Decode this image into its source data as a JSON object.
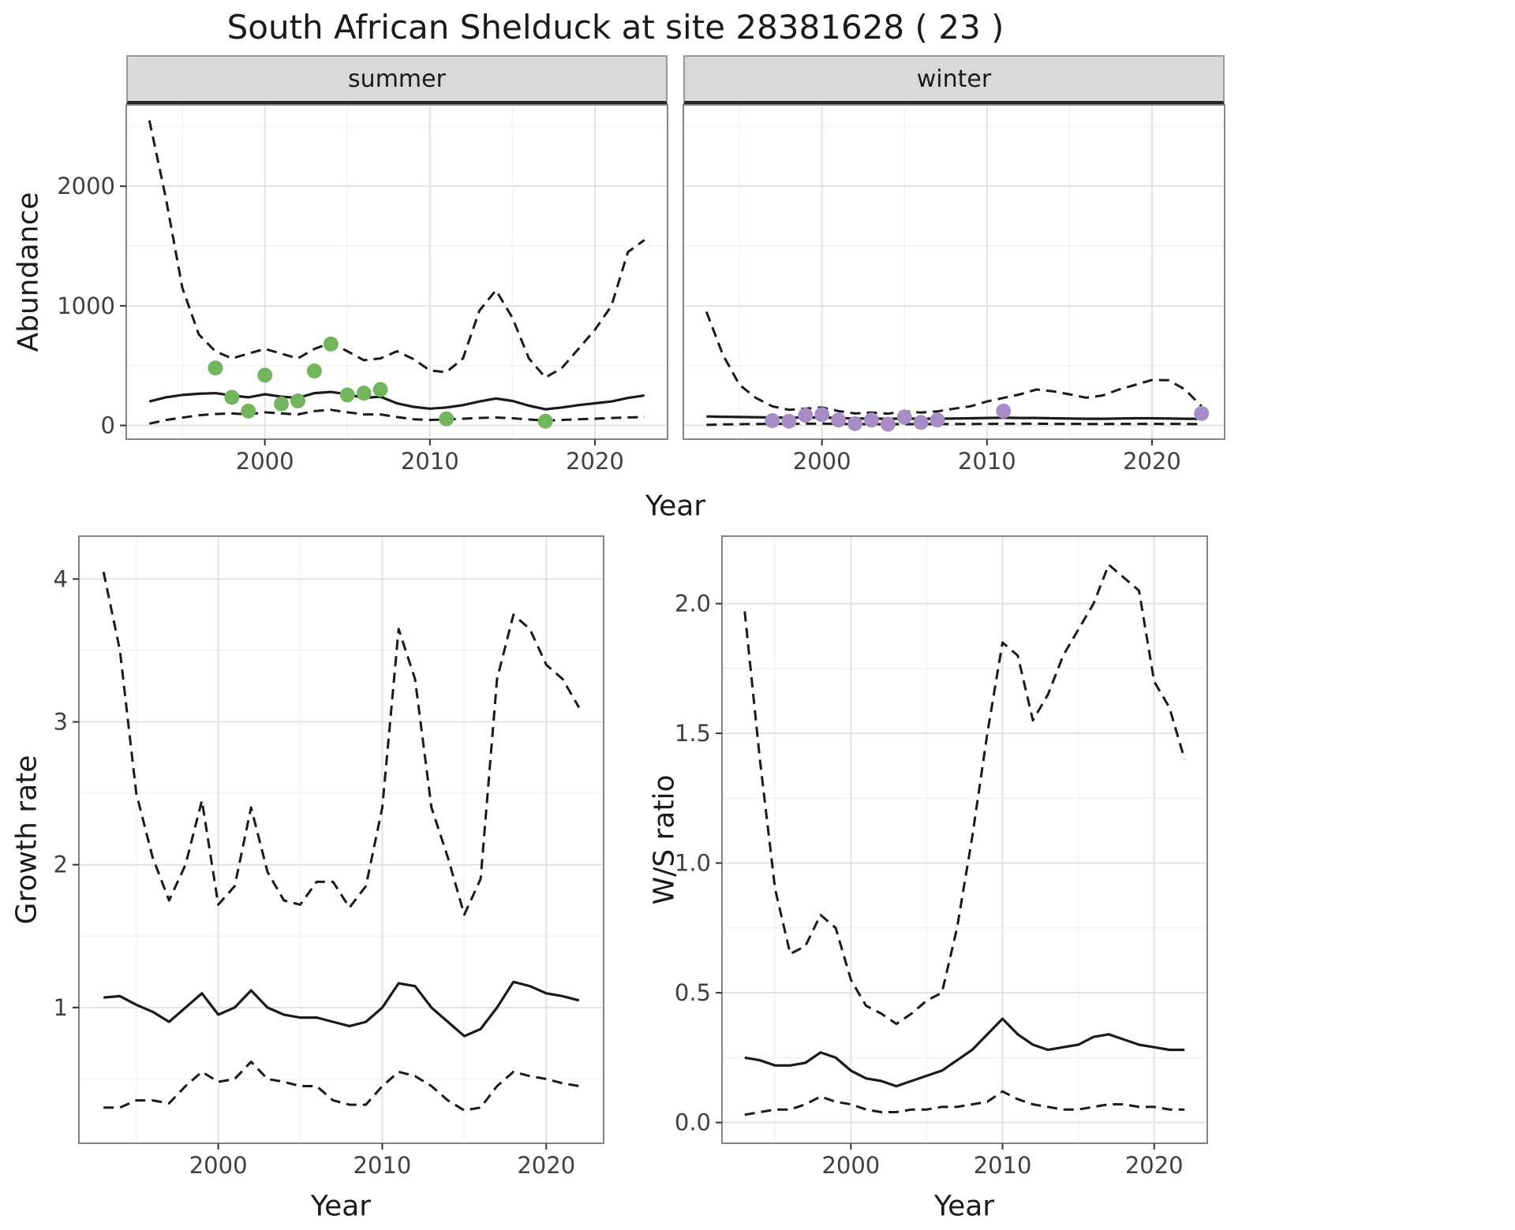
{
  "title": "South African Shelduck at site 28381628 ( 23 )",
  "facets": [
    {
      "label": "summer"
    },
    {
      "label": "winter"
    }
  ],
  "axes": {
    "abundance": "Abundance",
    "year": "Year",
    "growth_rate": "Growth rate",
    "ws_ratio": "W/S ratio"
  },
  "theme": {
    "background": "#ffffff",
    "panel_bg": "#ffffff",
    "grid_major": "#e3e3e3",
    "grid_minor": "#f1f1f1",
    "panel_border": "#858585",
    "strip_bg": "#d9d9d9",
    "strip_border": "#262626",
    "line_color": "#1a1a1a",
    "tick_color": "#333333",
    "text_color": "#404040",
    "title_color": "#1a1a1a",
    "summer_point_color": "#74b45e",
    "winter_point_color": "#a98cc5"
  },
  "chart_data": [
    {
      "id": "summer-abundance",
      "type": "line",
      "facet": "summer",
      "xlabel": "Year",
      "ylabel": "Abundance",
      "xlim": [
        1991.6,
        2024.4
      ],
      "ylim": [
        -115,
        2680
      ],
      "xticks": {
        "values": [
          2000,
          2010,
          2020
        ],
        "labels": [
          "2000",
          "2010",
          "2020"
        ]
      },
      "yticks": {
        "values": [
          0,
          1000,
          2000
        ],
        "labels": [
          "0",
          "1000",
          "2000"
        ]
      },
      "x": [
        1993,
        1994,
        1995,
        1996,
        1997,
        1998,
        1999,
        2000,
        2001,
        2002,
        2003,
        2004,
        2005,
        2006,
        2007,
        2008,
        2009,
        2010,
        2011,
        2012,
        2013,
        2014,
        2015,
        2016,
        2017,
        2018,
        2019,
        2020,
        2021,
        2022,
        2023
      ],
      "series": [
        {
          "name": "upper-ci",
          "style": "dashed",
          "values": [
            2550,
            1900,
            1150,
            760,
            620,
            560,
            600,
            640,
            600,
            560,
            640,
            690,
            620,
            545,
            560,
            620,
            555,
            460,
            445,
            560,
            960,
            1130,
            900,
            560,
            400,
            480,
            640,
            800,
            1000,
            1450,
            1550
          ]
        },
        {
          "name": "median",
          "style": "solid",
          "values": [
            200,
            235,
            255,
            265,
            270,
            250,
            235,
            260,
            240,
            230,
            270,
            280,
            260,
            230,
            240,
            185,
            155,
            140,
            150,
            170,
            200,
            225,
            205,
            165,
            135,
            150,
            170,
            185,
            200,
            230,
            250
          ]
        },
        {
          "name": "lower-ci",
          "style": "dashed",
          "values": [
            15,
            45,
            65,
            85,
            95,
            100,
            92,
            110,
            100,
            92,
            120,
            130,
            110,
            92,
            92,
            70,
            52,
            46,
            50,
            56,
            62,
            66,
            60,
            50,
            40,
            46,
            52,
            56,
            62,
            66,
            70
          ]
        }
      ],
      "points": {
        "name": "observed-counts-summer",
        "color": "#74b45e",
        "x": [
          1997,
          1998,
          1999,
          2000,
          2001,
          2002,
          2003,
          2004,
          2005,
          2006,
          2007,
          2011,
          2017
        ],
        "y": [
          480,
          235,
          120,
          420,
          180,
          205,
          455,
          680,
          255,
          270,
          300,
          55,
          35
        ]
      }
    },
    {
      "id": "winter-abundance",
      "type": "line",
      "facet": "winter",
      "xlabel": "Year",
      "ylabel": "Abundance",
      "xlim": [
        1991.6,
        2024.4
      ],
      "ylim": [
        -115,
        2680
      ],
      "xticks": {
        "values": [
          2000,
          2010,
          2020
        ],
        "labels": [
          "2000",
          "2010",
          "2020"
        ]
      },
      "yticks": {
        "values": [
          0,
          1000,
          2000
        ],
        "labels": [
          "0",
          "1000",
          "2000"
        ]
      },
      "x": [
        1993,
        1994,
        1995,
        1996,
        1997,
        1998,
        1999,
        2000,
        2001,
        2002,
        2003,
        2004,
        2005,
        2006,
        2007,
        2008,
        2009,
        2010,
        2011,
        2012,
        2013,
        2014,
        2015,
        2016,
        2017,
        2018,
        2019,
        2020,
        2021,
        2022,
        2023
      ],
      "series": [
        {
          "name": "upper-ci",
          "style": "dashed",
          "values": [
            950,
            590,
            340,
            230,
            160,
            130,
            140,
            150,
            120,
            100,
            108,
            98,
            118,
            108,
            118,
            140,
            160,
            200,
            230,
            260,
            300,
            285,
            260,
            232,
            250,
            300,
            340,
            380,
            378,
            300,
            160
          ]
        },
        {
          "name": "median",
          "style": "solid",
          "values": [
            75,
            72,
            70,
            68,
            66,
            64,
            66,
            66,
            62,
            58,
            57,
            55,
            57,
            56,
            56,
            58,
            60,
            62,
            64,
            62,
            62,
            60,
            58,
            56,
            56,
            58,
            60,
            60,
            58,
            56,
            55
          ]
        },
        {
          "name": "lower-ci",
          "style": "dashed",
          "values": [
            4,
            8,
            10,
            12,
            13,
            14,
            14,
            15,
            13,
            11,
            11,
            10,
            11,
            11,
            11,
            12,
            12,
            13,
            14,
            14,
            14,
            13,
            13,
            12,
            12,
            13,
            13,
            13,
            13,
            12,
            10
          ]
        }
      ],
      "points": {
        "name": "observed-counts-winter",
        "color": "#a98cc5",
        "x": [
          1997,
          1998,
          1999,
          2000,
          2001,
          2002,
          2003,
          2004,
          2005,
          2006,
          2007,
          2011,
          2023
        ],
        "y": [
          40,
          35,
          85,
          90,
          45,
          15,
          45,
          10,
          70,
          25,
          45,
          120,
          100
        ]
      }
    },
    {
      "id": "growth-rate",
      "type": "line",
      "facet": "",
      "xlabel": "Year",
      "ylabel": "Growth rate",
      "xlim": [
        1991.5,
        2023.5
      ],
      "ylim": [
        0.05,
        4.3
      ],
      "xticks": {
        "values": [
          2000,
          2010,
          2020
        ],
        "labels": [
          "2000",
          "2010",
          "2020"
        ]
      },
      "yticks": {
        "values": [
          1,
          2,
          3,
          4
        ],
        "labels": [
          "1",
          "2",
          "3",
          "4"
        ]
      },
      "x": [
        1993,
        1994,
        1995,
        1996,
        1997,
        1998,
        1999,
        2000,
        2001,
        2002,
        2003,
        2004,
        2005,
        2006,
        2007,
        2008,
        2009,
        2010,
        2011,
        2012,
        2013,
        2014,
        2015,
        2016,
        2017,
        2018,
        2019,
        2020,
        2021,
        2022
      ],
      "series": [
        {
          "name": "upper-ci",
          "style": "dashed",
          "values": [
            4.05,
            3.5,
            2.5,
            2.05,
            1.75,
            2.0,
            2.45,
            1.72,
            1.85,
            2.4,
            1.95,
            1.75,
            1.72,
            1.88,
            1.88,
            1.7,
            1.85,
            2.4,
            3.65,
            3.3,
            2.4,
            2.05,
            1.65,
            1.9,
            3.3,
            3.75,
            3.65,
            3.4,
            3.3,
            3.1
          ]
        },
        {
          "name": "median",
          "style": "solid",
          "values": [
            1.07,
            1.08,
            1.02,
            0.97,
            0.9,
            1.0,
            1.1,
            0.95,
            1.0,
            1.12,
            1.0,
            0.95,
            0.93,
            0.93,
            0.9,
            0.87,
            0.9,
            1.0,
            1.17,
            1.15,
            1.0,
            0.9,
            0.8,
            0.85,
            1.0,
            1.18,
            1.15,
            1.1,
            1.08,
            1.05
          ]
        },
        {
          "name": "lower-ci",
          "style": "dashed",
          "values": [
            0.3,
            0.3,
            0.35,
            0.35,
            0.33,
            0.45,
            0.55,
            0.48,
            0.5,
            0.62,
            0.5,
            0.48,
            0.45,
            0.45,
            0.35,
            0.32,
            0.32,
            0.45,
            0.55,
            0.52,
            0.45,
            0.35,
            0.28,
            0.3,
            0.45,
            0.55,
            0.52,
            0.5,
            0.47,
            0.45
          ]
        }
      ]
    },
    {
      "id": "ws-ratio",
      "type": "line",
      "facet": "",
      "xlabel": "Year",
      "ylabel": "W/S ratio",
      "xlim": [
        1991.5,
        2023.5
      ],
      "ylim": [
        -0.08,
        2.26
      ],
      "xticks": {
        "values": [
          2000,
          2010,
          2020
        ],
        "labels": [
          "2000",
          "2010",
          "2020"
        ]
      },
      "yticks": {
        "values": [
          0.0,
          0.5,
          1.0,
          1.5,
          2.0
        ],
        "labels": [
          "0.0",
          "0.5",
          "1.0",
          "1.5",
          "2.0"
        ]
      },
      "x": [
        1993,
        1994,
        1995,
        1996,
        1997,
        1998,
        1999,
        2000,
        2001,
        2002,
        2003,
        2004,
        2005,
        2006,
        2007,
        2008,
        2009,
        2010,
        2011,
        2012,
        2013,
        2014,
        2015,
        2016,
        2017,
        2018,
        2019,
        2020,
        2021,
        2022
      ],
      "series": [
        {
          "name": "upper-ci",
          "style": "dashed",
          "values": [
            1.97,
            1.4,
            0.9,
            0.65,
            0.68,
            0.8,
            0.75,
            0.55,
            0.45,
            0.42,
            0.38,
            0.42,
            0.47,
            0.5,
            0.75,
            1.1,
            1.5,
            1.85,
            1.8,
            1.55,
            1.65,
            1.8,
            1.9,
            2.0,
            2.15,
            2.1,
            2.05,
            1.7,
            1.6,
            1.4
          ]
        },
        {
          "name": "median",
          "style": "solid",
          "values": [
            0.25,
            0.24,
            0.22,
            0.22,
            0.23,
            0.27,
            0.25,
            0.2,
            0.17,
            0.16,
            0.14,
            0.16,
            0.18,
            0.2,
            0.24,
            0.28,
            0.34,
            0.4,
            0.34,
            0.3,
            0.28,
            0.29,
            0.3,
            0.33,
            0.34,
            0.32,
            0.3,
            0.29,
            0.28,
            0.28
          ]
        },
        {
          "name": "lower-ci",
          "style": "dashed",
          "values": [
            0.03,
            0.04,
            0.05,
            0.05,
            0.07,
            0.1,
            0.08,
            0.07,
            0.05,
            0.04,
            0.04,
            0.05,
            0.05,
            0.06,
            0.06,
            0.07,
            0.08,
            0.12,
            0.09,
            0.07,
            0.06,
            0.05,
            0.05,
            0.06,
            0.07,
            0.07,
            0.06,
            0.06,
            0.05,
            0.05
          ]
        }
      ]
    }
  ]
}
